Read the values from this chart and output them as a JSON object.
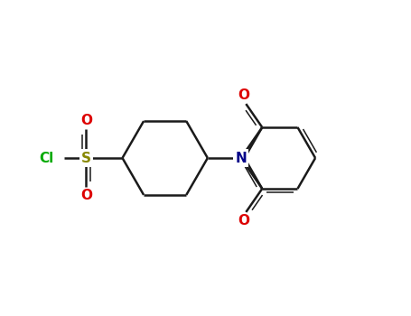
{
  "bg": "#ffffff",
  "bond_color": "#1a1a1a",
  "cl_color": "#00aa00",
  "s_color": "#888800",
  "o_color": "#dd0000",
  "n_color": "#000088",
  "lw": 1.8,
  "lw2": 1.1,
  "fs": 11,
  "figsize": [
    4.55,
    3.5
  ],
  "dpi": 100,
  "xlim": [
    0,
    9.5
  ],
  "ylim": [
    0,
    7.3
  ]
}
